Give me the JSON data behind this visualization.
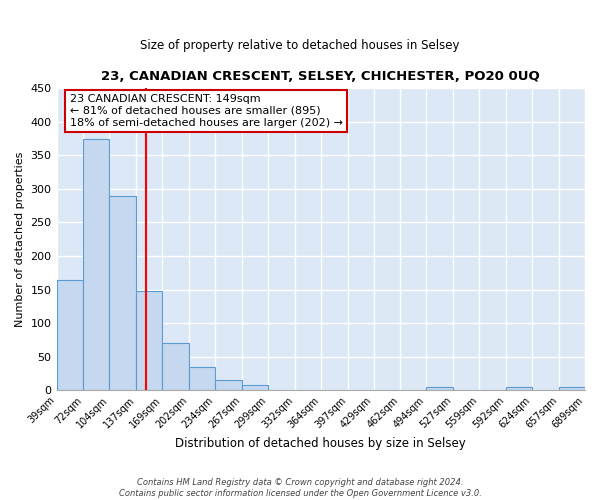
{
  "title": "23, CANADIAN CRESCENT, SELSEY, CHICHESTER, PO20 0UQ",
  "subtitle": "Size of property relative to detached houses in Selsey",
  "xlabel": "Distribution of detached houses by size in Selsey",
  "ylabel": "Number of detached properties",
  "bar_edges": [
    39,
    72,
    104,
    137,
    169,
    202,
    234,
    267,
    299,
    332,
    364,
    397,
    429,
    462,
    494,
    527,
    559,
    592,
    624,
    657,
    689
  ],
  "bar_heights": [
    165,
    375,
    290,
    148,
    70,
    35,
    15,
    7,
    0,
    0,
    0,
    1,
    0,
    0,
    5,
    0,
    0,
    5,
    0,
    5
  ],
  "bar_color": "#c5d8ef",
  "bar_edge_color": "#5b9bd5",
  "red_line_x": 149,
  "ylim": [
    0,
    450
  ],
  "yticks": [
    0,
    50,
    100,
    150,
    200,
    250,
    300,
    350,
    400,
    450
  ],
  "annotation_title": "23 CANADIAN CRESCENT: 149sqm",
  "annotation_line1": "← 81% of detached houses are smaller (895)",
  "annotation_line2": "18% of semi-detached houses are larger (202) →",
  "footer1": "Contains HM Land Registry data © Crown copyright and database right 2024.",
  "footer2": "Contains public sector information licensed under the Open Government Licence v3.0.",
  "fig_bg_color": "#ffffff",
  "plot_bg_color": "#dce8f5"
}
